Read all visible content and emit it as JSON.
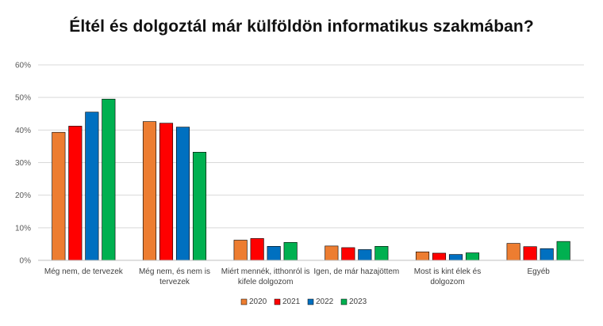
{
  "chart_data": {
    "type": "bar",
    "title": "Éltél és dolgoztál már külföldön informatikus szakmában?",
    "xlabel": "",
    "ylabel": "",
    "ylim": [
      0,
      60
    ],
    "y_ticks": [
      "0%",
      "10%",
      "20%",
      "30%",
      "40%",
      "50%",
      "60%"
    ],
    "y_tick_values": [
      0,
      10,
      20,
      30,
      40,
      50,
      60
    ],
    "grid": true,
    "legend_position": "bottom",
    "categories": [
      [
        "Még nem, de tervezek"
      ],
      [
        "Még nem, és nem is",
        "tervezek"
      ],
      [
        "Miért mennék, itthonról is",
        "kifele dolgozom"
      ],
      [
        "Igen, de már hazajöttem"
      ],
      [
        "Most is kint élek és",
        "dolgozom"
      ],
      [
        "Egyéb"
      ]
    ],
    "series": [
      {
        "name": "2020",
        "color": "#ED7D31",
        "values": [
          39.3,
          42.6,
          6.2,
          4.4,
          2.6,
          5.2
        ]
      },
      {
        "name": "2021",
        "color": "#FF0000",
        "values": [
          41.2,
          42.1,
          6.7,
          3.9,
          2.2,
          4.2
        ]
      },
      {
        "name": "2022",
        "color": "#0070C0",
        "values": [
          45.5,
          40.9,
          4.3,
          3.3,
          1.8,
          3.6
        ]
      },
      {
        "name": "2023",
        "color": "#00B050",
        "values": [
          49.5,
          33.2,
          5.5,
          4.3,
          2.3,
          5.8
        ]
      }
    ]
  }
}
